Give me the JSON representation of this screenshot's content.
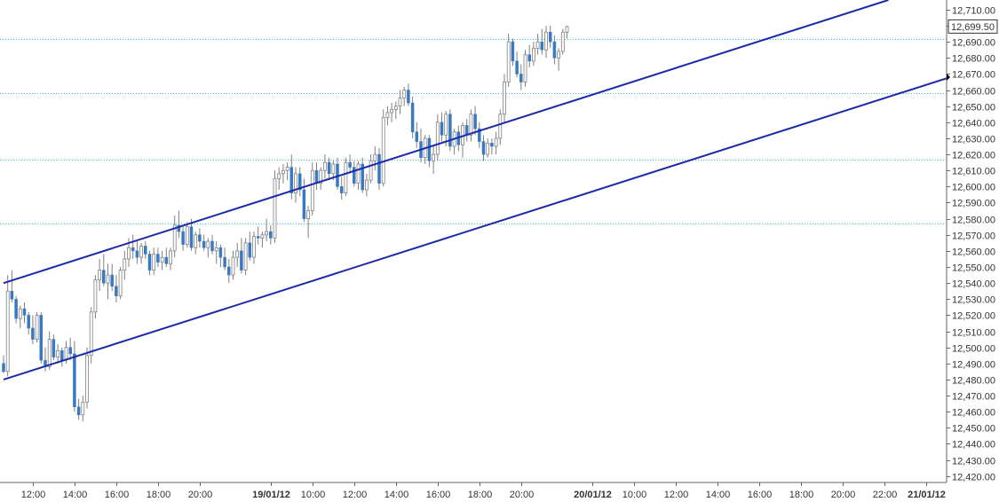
{
  "colors": {
    "up_fill": "#ffffff",
    "up_stroke": "#808080",
    "down_fill": "#3a78c2",
    "channel": "#1c2aa8",
    "hline": "#33c0d8",
    "axis": "#666666"
  },
  "chart_data": {
    "type": "candlestick",
    "title": "",
    "ylim": [
      12416,
      12716
    ],
    "y_ticks": [
      12420,
      12430,
      12440,
      12450,
      12460,
      12470,
      12480,
      12490,
      12500,
      12510,
      12520,
      12530,
      12540,
      12550,
      12560,
      12570,
      12580,
      12590,
      12600,
      12610,
      12620,
      12630,
      12640,
      12650,
      12660,
      12670,
      12680,
      12690,
      12700,
      12710
    ],
    "y_tick_labels": [
      "12,420.00",
      "12,430.00",
      "12,440.00",
      "12,450.00",
      "12,460.00",
      "12,470.00",
      "12,480.00",
      "12,490.00",
      "12,500.00",
      "12,510.00",
      "12,520.00",
      "12,530.00",
      "12,540.00",
      "12,550.00",
      "12,560.00",
      "12,570.00",
      "12,580.00",
      "12,590.00",
      "12,600.00",
      "12,610.00",
      "12,620.00",
      "12,630.00",
      "12,640.00",
      "12,650.00",
      "12,660.00",
      "12,670.00",
      "12,680.00",
      "12,690.00",
      "12,700.00",
      "12,710.00"
    ],
    "last_price": 12699.5,
    "last_price_label": "12,699.50",
    "x_ticks": [
      {
        "label": "12:00",
        "bar": 7,
        "bold": false
      },
      {
        "label": "14:00",
        "bar": 17,
        "bold": false
      },
      {
        "label": "16:00",
        "bar": 27,
        "bold": false
      },
      {
        "label": "18:00",
        "bar": 37,
        "bold": false
      },
      {
        "label": "20:00",
        "bar": 47,
        "bold": false
      },
      {
        "label": "19/01/12",
        "bar": 64,
        "bold": true
      },
      {
        "label": "10:00",
        "bar": 74,
        "bold": false
      },
      {
        "label": "12:00",
        "bar": 84,
        "bold": false
      },
      {
        "label": "14:00",
        "bar": 94,
        "bold": false
      },
      {
        "label": "16:00",
        "bar": 104,
        "bold": false
      },
      {
        "label": "18:00",
        "bar": 114,
        "bold": false
      },
      {
        "label": "20:00",
        "bar": 124,
        "bold": false
      },
      {
        "label": "20/01/12",
        "bar": 141,
        "bold": true
      },
      {
        "label": "10:00",
        "bar": 151,
        "bold": false
      },
      {
        "label": "12:00",
        "bar": 161,
        "bold": false
      },
      {
        "label": "14:00",
        "bar": 171,
        "bold": false
      },
      {
        "label": "16:00",
        "bar": 181,
        "bold": false
      },
      {
        "label": "18:00",
        "bar": 191,
        "bold": false
      },
      {
        "label": "20:00",
        "bar": 201,
        "bold": false
      },
      {
        "label": "22:00",
        "bar": 211,
        "bold": false
      },
      {
        "label": "21/01/12",
        "bar": 221,
        "bold": true
      }
    ],
    "horizontal_lines": [
      12692,
      12658,
      12617,
      12577
    ],
    "channel_lines": [
      {
        "name": "upper",
        "from": {
          "bar": 0,
          "value": 12540
        },
        "to": {
          "bar": 212,
          "value": 12716
        }
      },
      {
        "name": "lower",
        "from": {
          "bar": 0,
          "value": 12480
        },
        "to": {
          "bar": 228,
          "value": 12669
        }
      }
    ],
    "candles": [
      [
        12490,
        12495,
        12484,
        12485
      ],
      [
        12485,
        12545,
        12482,
        12535
      ],
      [
        12535,
        12548,
        12528,
        12530
      ],
      [
        12530,
        12532,
        12515,
        12518
      ],
      [
        12518,
        12526,
        12512,
        12524
      ],
      [
        12524,
        12528,
        12515,
        12520
      ],
      [
        12520,
        12522,
        12508,
        12512
      ],
      [
        12512,
        12520,
        12502,
        12505
      ],
      [
        12505,
        12522,
        12503,
        12520
      ],
      [
        12520,
        12522,
        12490,
        12492
      ],
      [
        12492,
        12500,
        12485,
        12488
      ],
      [
        12488,
        12510,
        12486,
        12505
      ],
      [
        12505,
        12508,
        12492,
        12494
      ],
      [
        12494,
        12502,
        12490,
        12498
      ],
      [
        12498,
        12500,
        12488,
        12492
      ],
      [
        12492,
        12504,
        12490,
        12500
      ],
      [
        12500,
        12506,
        12492,
        12496
      ],
      [
        12496,
        12504,
        12460,
        12463
      ],
      [
        12463,
        12468,
        12455,
        12458
      ],
      [
        12458,
        12470,
        12454,
        12466
      ],
      [
        12466,
        12500,
        12462,
        12495
      ],
      [
        12495,
        12525,
        12490,
        12522
      ],
      [
        12522,
        12545,
        12518,
        12542
      ],
      [
        12542,
        12555,
        12535,
        12548
      ],
      [
        12548,
        12558,
        12538,
        12540
      ],
      [
        12540,
        12552,
        12530,
        12545
      ],
      [
        12545,
        12552,
        12535,
        12538
      ],
      [
        12538,
        12545,
        12528,
        12532
      ],
      [
        12532,
        12550,
        12530,
        12548
      ],
      [
        12548,
        12560,
        12542,
        12555
      ],
      [
        12555,
        12568,
        12550,
        12562
      ],
      [
        12562,
        12570,
        12555,
        12560
      ],
      [
        12560,
        12566,
        12552,
        12556
      ],
      [
        12556,
        12565,
        12552,
        12563
      ],
      [
        12563,
        12566,
        12555,
        12558
      ],
      [
        12558,
        12560,
        12545,
        12548
      ],
      [
        12548,
        12562,
        12545,
        12558
      ],
      [
        12558,
        12562,
        12550,
        12553
      ],
      [
        12553,
        12560,
        12548,
        12556
      ],
      [
        12556,
        12562,
        12550,
        12552
      ],
      [
        12552,
        12562,
        12548,
        12560
      ],
      [
        12560,
        12582,
        12556,
        12576
      ],
      [
        12576,
        12585,
        12568,
        12572
      ],
      [
        12572,
        12576,
        12560,
        12564
      ],
      [
        12564,
        12578,
        12562,
        12575
      ],
      [
        12575,
        12580,
        12560,
        12562
      ],
      [
        12562,
        12572,
        12558,
        12570
      ],
      [
        12570,
        12574,
        12562,
        12566
      ],
      [
        12566,
        12570,
        12560,
        12562
      ],
      [
        12562,
        12568,
        12556,
        12566
      ],
      [
        12566,
        12570,
        12558,
        12560
      ],
      [
        12560,
        12566,
        12552,
        12562
      ],
      [
        12562,
        12564,
        12550,
        12556
      ],
      [
        12556,
        12562,
        12548,
        12550
      ],
      [
        12550,
        12555,
        12540,
        12545
      ],
      [
        12545,
        12560,
        12542,
        12556
      ],
      [
        12556,
        12565,
        12550,
        12560
      ],
      [
        12560,
        12568,
        12546,
        12548
      ],
      [
        12548,
        12568,
        12545,
        12565
      ],
      [
        12565,
        12572,
        12554,
        12556
      ],
      [
        12556,
        12572,
        12552,
        12569
      ],
      [
        12569,
        12575,
        12564,
        12568
      ],
      [
        12568,
        12572,
        12562,
        12570
      ],
      [
        12570,
        12580,
        12566,
        12572
      ],
      [
        12572,
        12576,
        12564,
        12568
      ],
      [
        12568,
        12610,
        12565,
        12605
      ],
      [
        12605,
        12612,
        12598,
        12608
      ],
      [
        12608,
        12614,
        12602,
        12610
      ],
      [
        12610,
        12615,
        12604,
        12612
      ],
      [
        12612,
        12620,
        12592,
        12596
      ],
      [
        12596,
        12612,
        12590,
        12608
      ],
      [
        12608,
        12612,
        12594,
        12598
      ],
      [
        12598,
        12605,
        12578,
        12580
      ],
      [
        12580,
        12588,
        12568,
        12585
      ],
      [
        12585,
        12615,
        12582,
        12610
      ],
      [
        12610,
        12615,
        12598,
        12602
      ],
      [
        12602,
        12612,
        12598,
        12610
      ],
      [
        12610,
        12620,
        12605,
        12615
      ],
      [
        12615,
        12618,
        12604,
        12608
      ],
      [
        12608,
        12616,
        12604,
        12614
      ],
      [
        12614,
        12618,
        12598,
        12600
      ],
      [
        12600,
        12606,
        12592,
        12596
      ],
      [
        12596,
        12618,
        12594,
        12615
      ],
      [
        12615,
        12620,
        12608,
        12612
      ],
      [
        12612,
        12616,
        12600,
        12602
      ],
      [
        12602,
        12616,
        12598,
        12614
      ],
      [
        12614,
        12618,
        12596,
        12598
      ],
      [
        12598,
        12608,
        12594,
        12604
      ],
      [
        12604,
        12620,
        12602,
        12616
      ],
      [
        12616,
        12625,
        12610,
        12620
      ],
      [
        12620,
        12624,
        12598,
        12602
      ],
      [
        12602,
        12648,
        12600,
        12643
      ],
      [
        12643,
        12650,
        12638,
        12646
      ],
      [
        12646,
        12652,
        12640,
        12648
      ],
      [
        12648,
        12653,
        12642,
        12650
      ],
      [
        12650,
        12660,
        12645,
        12655
      ],
      [
        12655,
        12662,
        12650,
        12660
      ],
      [
        12660,
        12664,
        12650,
        12652
      ],
      [
        12652,
        12656,
        12630,
        12634
      ],
      [
        12634,
        12640,
        12624,
        12628
      ],
      [
        12628,
        12636,
        12615,
        12618
      ],
      [
        12618,
        12632,
        12614,
        12630
      ],
      [
        12630,
        12632,
        12612,
        12616
      ],
      [
        12616,
        12625,
        12608,
        12620
      ],
      [
        12620,
        12645,
        12616,
        12640
      ],
      [
        12640,
        12646,
        12628,
        12632
      ],
      [
        12632,
        12647,
        12625,
        12645
      ],
      [
        12645,
        12648,
        12622,
        12625
      ],
      [
        12625,
        12636,
        12620,
        12634
      ],
      [
        12634,
        12638,
        12622,
        12626
      ],
      [
        12626,
        12640,
        12618,
        12638
      ],
      [
        12638,
        12642,
        12628,
        12632
      ],
      [
        12632,
        12648,
        12628,
        12645
      ],
      [
        12645,
        12650,
        12632,
        12636
      ],
      [
        12636,
        12640,
        12624,
        12628
      ],
      [
        12628,
        12632,
        12616,
        12620
      ],
      [
        12620,
        12630,
        12618,
        12627
      ],
      [
        12627,
        12630,
        12620,
        12625
      ],
      [
        12625,
        12634,
        12620,
        12630
      ],
      [
        12630,
        12648,
        12626,
        12645
      ],
      [
        12645,
        12670,
        12640,
        12665
      ],
      [
        12665,
        12695,
        12662,
        12690
      ],
      [
        12690,
        12692,
        12675,
        12678
      ],
      [
        12678,
        12684,
        12668,
        12670
      ],
      [
        12670,
        12676,
        12660,
        12665
      ],
      [
        12665,
        12685,
        12662,
        12682
      ],
      [
        12682,
        12688,
        12674,
        12678
      ],
      [
        12678,
        12690,
        12675,
        12686
      ],
      [
        12686,
        12695,
        12682,
        12690
      ],
      [
        12690,
        12698,
        12682,
        12685
      ],
      [
        12685,
        12700,
        12680,
        12696
      ],
      [
        12696,
        12700,
        12686,
        12690
      ],
      [
        12690,
        12694,
        12676,
        12680
      ],
      [
        12680,
        12686,
        12672,
        12684
      ],
      [
        12684,
        12698,
        12682,
        12696
      ],
      [
        12696,
        12700,
        12692,
        12699.5
      ]
    ]
  }
}
